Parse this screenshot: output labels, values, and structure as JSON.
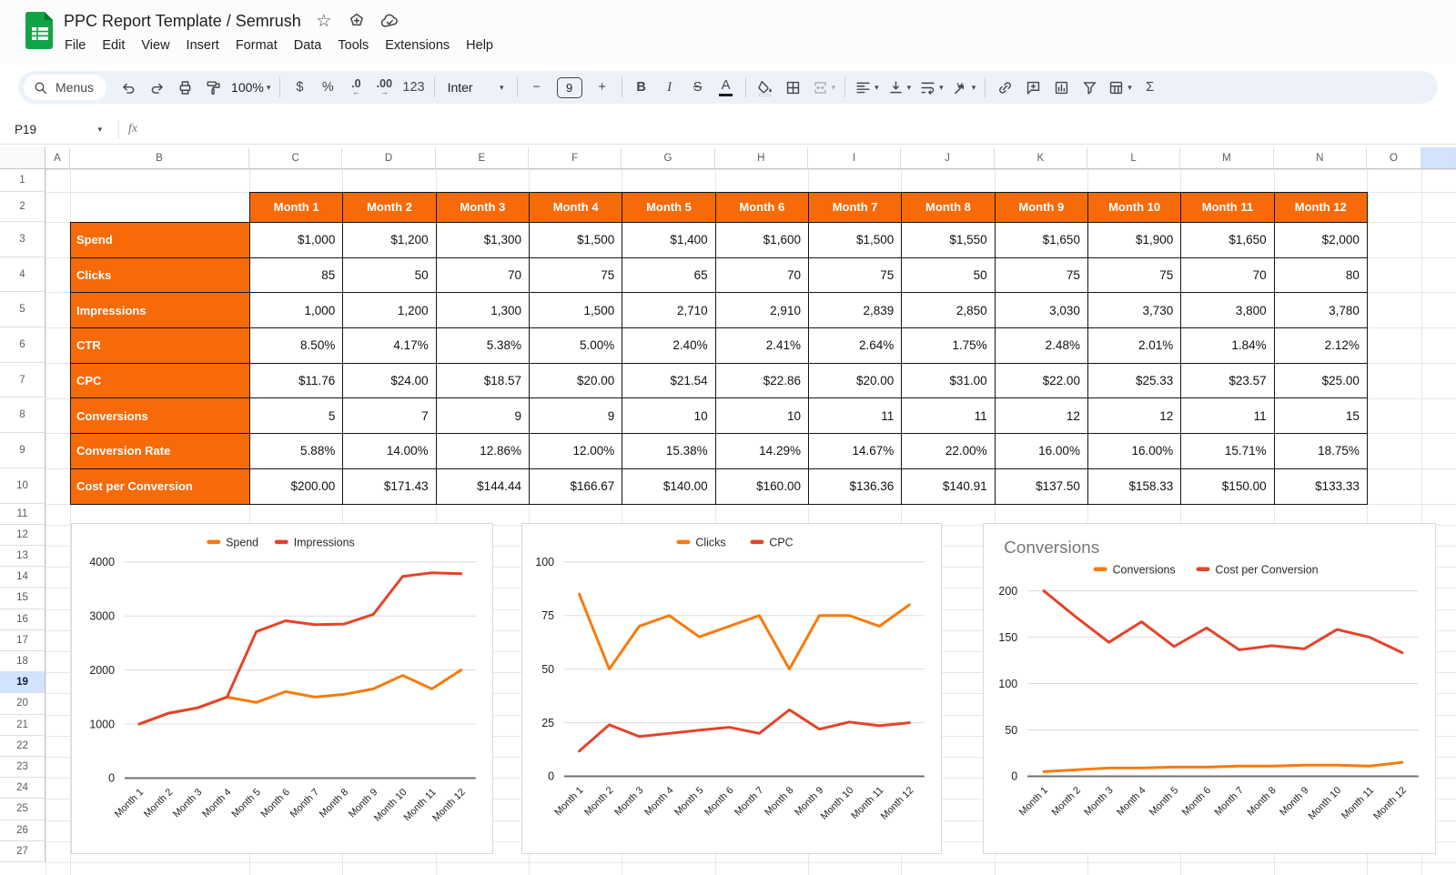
{
  "titlebar": {
    "title": "PPC Report Template / Semrush",
    "menus": [
      "File",
      "Edit",
      "View",
      "Insert",
      "Format",
      "Data",
      "Tools",
      "Extensions",
      "Help"
    ]
  },
  "toolbar": {
    "items": [
      {
        "name": "menus-search",
        "type": "search-pill",
        "label": "Menus"
      },
      {
        "name": "undo",
        "type": "icon"
      },
      {
        "name": "redo",
        "type": "icon"
      },
      {
        "name": "print",
        "type": "icon"
      },
      {
        "name": "paint-format",
        "type": "icon"
      },
      {
        "name": "zoom",
        "type": "dropdown",
        "label": "100%"
      },
      {
        "type": "divider"
      },
      {
        "name": "format-currency",
        "type": "text",
        "label": "$"
      },
      {
        "name": "format-percent",
        "type": "text",
        "label": "%"
      },
      {
        "name": "decrease-decimals",
        "type": "decimal",
        "label": ".0",
        "arrow": "←"
      },
      {
        "name": "increase-decimals",
        "type": "decimal",
        "label": ".00",
        "arrow": "→"
      },
      {
        "name": "more-formats",
        "type": "text",
        "label": "123"
      },
      {
        "type": "divider"
      },
      {
        "name": "font",
        "type": "font-dropdown",
        "label": "Inter"
      },
      {
        "type": "divider"
      },
      {
        "name": "decrease-font-size",
        "type": "text",
        "label": "−"
      },
      {
        "name": "font-size",
        "type": "size-input",
        "label": "9"
      },
      {
        "name": "increase-font-size",
        "type": "text",
        "label": "+"
      },
      {
        "type": "divider"
      },
      {
        "name": "bold",
        "type": "text",
        "label": "B",
        "style": "b"
      },
      {
        "name": "italic",
        "type": "text",
        "label": "I",
        "style": "i"
      },
      {
        "name": "strikethrough",
        "type": "text",
        "label": "S",
        "style": "s"
      },
      {
        "name": "text-color",
        "type": "letter-color",
        "label": "A"
      },
      {
        "type": "divider"
      },
      {
        "name": "fill-color",
        "type": "icon"
      },
      {
        "name": "borders",
        "type": "icon"
      },
      {
        "name": "merge-cells",
        "type": "icon-caret",
        "disabled": true
      },
      {
        "type": "divider"
      },
      {
        "name": "horizontal-align",
        "type": "icon-caret"
      },
      {
        "name": "vertical-align",
        "type": "icon-caret"
      },
      {
        "name": "text-wrapping",
        "type": "icon-caret"
      },
      {
        "name": "text-rotation",
        "type": "icon-caret"
      },
      {
        "type": "divider"
      },
      {
        "name": "insert-link",
        "type": "icon"
      },
      {
        "name": "insert-comment",
        "type": "icon"
      },
      {
        "name": "insert-chart",
        "type": "icon"
      },
      {
        "name": "create-filter",
        "type": "icon"
      },
      {
        "name": "table-views",
        "type": "icon-caret"
      },
      {
        "name": "functions",
        "type": "text",
        "label": "Σ"
      }
    ]
  },
  "formula_bar": {
    "cell_ref": "P19",
    "fx_label": "fx"
  },
  "grid": {
    "columns": [
      "A",
      "B",
      "C",
      "D",
      "E",
      "F",
      "G",
      "H",
      "I",
      "J",
      "K",
      "L",
      "M",
      "N",
      "O"
    ],
    "rows": [
      "1",
      "2",
      "3",
      "4",
      "5",
      "6",
      "7",
      "8",
      "9",
      "10",
      "11",
      "12",
      "13",
      "14",
      "15",
      "16",
      "17",
      "18",
      "19",
      "20",
      "21",
      "22",
      "23",
      "24",
      "25",
      "26",
      "27"
    ],
    "selected_row": "19",
    "selected_cell": "P19"
  },
  "table": {
    "columns": [
      "Month 1",
      "Month 2",
      "Month 3",
      "Month 4",
      "Month 5",
      "Month 6",
      "Month 7",
      "Month 8",
      "Month 9",
      "Month 10",
      "Month 11",
      "Month 12"
    ],
    "rows": [
      {
        "label": "Spend",
        "values": [
          "$1,000",
          "$1,200",
          "$1,300",
          "$1,500",
          "$1,400",
          "$1,600",
          "$1,500",
          "$1,550",
          "$1,650",
          "$1,900",
          "$1,650",
          "$2,000"
        ]
      },
      {
        "label": "Clicks",
        "values": [
          "85",
          "50",
          "70",
          "75",
          "65",
          "70",
          "75",
          "50",
          "75",
          "75",
          "70",
          "80"
        ]
      },
      {
        "label": "Impressions",
        "values": [
          "1,000",
          "1,200",
          "1,300",
          "1,500",
          "2,710",
          "2,910",
          "2,839",
          "2,850",
          "3,030",
          "3,730",
          "3,800",
          "3,780"
        ]
      },
      {
        "label": "CTR",
        "values": [
          "8.50%",
          "4.17%",
          "5.38%",
          "5.00%",
          "2.40%",
          "2.41%",
          "2.64%",
          "1.75%",
          "2.48%",
          "2.01%",
          "1.84%",
          "2.12%"
        ]
      },
      {
        "label": "CPC",
        "values": [
          "$11.76",
          "$24.00",
          "$18.57",
          "$20.00",
          "$21.54",
          "$22.86",
          "$20.00",
          "$31.00",
          "$22.00",
          "$25.33",
          "$23.57",
          "$25.00"
        ]
      },
      {
        "label": "Conversions",
        "values": [
          "5",
          "7",
          "9",
          "9",
          "10",
          "10",
          "11",
          "11",
          "12",
          "12",
          "11",
          "15"
        ]
      },
      {
        "label": "Conversion Rate",
        "values": [
          "5.88%",
          "14.00%",
          "12.86%",
          "12.00%",
          "15.38%",
          "14.29%",
          "14.67%",
          "22.00%",
          "16.00%",
          "16.00%",
          "15.71%",
          "18.75%"
        ]
      },
      {
        "label": "Cost per Conversion",
        "values": [
          "$200.00",
          "$171.43",
          "$144.44",
          "$166.67",
          "$140.00",
          "$160.00",
          "$136.36",
          "$140.91",
          "$137.50",
          "$158.33",
          "$150.00",
          "$133.33"
        ]
      }
    ]
  },
  "chart_data": [
    {
      "type": "line",
      "title": "",
      "categories": [
        "Month 1",
        "Month 2",
        "Month 3",
        "Month 4",
        "Month 5",
        "Month 6",
        "Month 7",
        "Month 8",
        "Month 9",
        "Month 10",
        "Month 11",
        "Month 12"
      ],
      "series": [
        {
          "name": "Spend",
          "color": "#f87a0b",
          "values": [
            1000,
            1200,
            1300,
            1500,
            1400,
            1600,
            1500,
            1550,
            1650,
            1900,
            1650,
            2000
          ]
        },
        {
          "name": "Impressions",
          "color": "#e5432a",
          "values": [
            1000,
            1200,
            1300,
            1500,
            2710,
            2910,
            2839,
            2850,
            3030,
            3730,
            3800,
            3780
          ]
        }
      ],
      "ylim": [
        0,
        4000
      ],
      "yticks": [
        0,
        1000,
        2000,
        3000,
        4000
      ],
      "legend_position": "top",
      "grid": true
    },
    {
      "type": "line",
      "title": "",
      "categories": [
        "Month 1",
        "Month 2",
        "Month 3",
        "Month 4",
        "Month 5",
        "Month 6",
        "Month 7",
        "Month 8",
        "Month 9",
        "Month 10",
        "Month 11",
        "Month 12"
      ],
      "series": [
        {
          "name": "Clicks",
          "color": "#f87a0b",
          "values": [
            85,
            50,
            70,
            75,
            65,
            70,
            75,
            50,
            75,
            75,
            70,
            80
          ]
        },
        {
          "name": "CPC",
          "color": "#e5432a",
          "values": [
            11.76,
            24,
            18.57,
            20,
            21.54,
            22.86,
            20,
            31,
            22,
            25.33,
            23.57,
            25
          ]
        }
      ],
      "ylim": [
        0,
        100
      ],
      "yticks": [
        0,
        25,
        50,
        75,
        100
      ],
      "legend_position": "top",
      "grid": true
    },
    {
      "type": "line",
      "title": "Conversions",
      "categories": [
        "Month 1",
        "Month 2",
        "Month 3",
        "Month 4",
        "Month 5",
        "Month 6",
        "Month 7",
        "Month 8",
        "Month 9",
        "Month 10",
        "Month 11",
        "Month 12"
      ],
      "series": [
        {
          "name": "Conversions",
          "color": "#f87a0b",
          "values": [
            5,
            7,
            9,
            9,
            10,
            10,
            11,
            11,
            12,
            12,
            11,
            15
          ]
        },
        {
          "name": "Cost per Conversion",
          "color": "#e5432a",
          "values": [
            200,
            171.43,
            144.44,
            166.67,
            140,
            160,
            136.36,
            140.91,
            137.5,
            158.33,
            150,
            133.33
          ]
        }
      ],
      "ylim": [
        0,
        200
      ],
      "yticks": [
        0,
        50,
        100,
        150,
        200
      ],
      "legend_position": "top",
      "grid": true
    }
  ],
  "colors": {
    "table_header_orange": "#f76a0a",
    "series_orange": "#f87a0b",
    "series_red": "#e5432a",
    "selection_blue": "#d3e3fd",
    "toolbar_bg": "#edf2fa",
    "logo_green": "#12a347"
  }
}
